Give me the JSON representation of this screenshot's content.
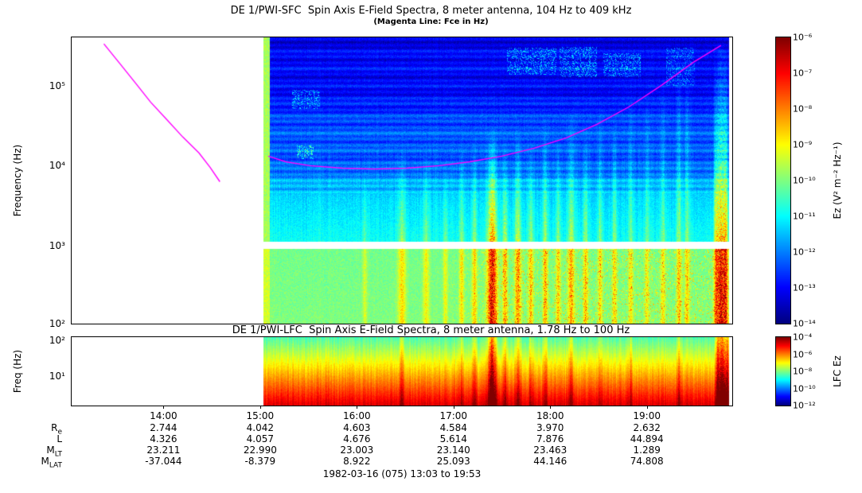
{
  "footer_label": "1982-03-16 (075) 13:03 to 19:53",
  "chart_data": [
    {
      "id": "sfc",
      "type": "heatmap",
      "title": "DE 1/PWI-SFC  Spin Axis E-Field Spectra, 8 meter antenna, 104 Hz to 409 kHz",
      "subtitle": "(Magenta Line: Fce in Hz)",
      "ylabel": "Frequency (Hz)",
      "colorbar_label": "Ez (V² m⁻² Hz⁻¹)",
      "x_start": "13:03",
      "x_end": "19:53",
      "x_ticks": [
        "14:00",
        "15:00",
        "16:00",
        "17:00",
        "18:00",
        "19:00"
      ],
      "data_start": "15:02",
      "data_end": "19:51",
      "turn_on_strip_end": "15:06",
      "freq_range_hz": [
        104,
        409000
      ],
      "freq_scale": "log",
      "ytick_exponents": [
        5,
        4,
        3,
        2
      ],
      "value_range": [
        1e-14,
        1e-06
      ],
      "colorbar_ticks": [
        -6,
        -7,
        -8,
        -9,
        -10,
        -11,
        -12,
        -13,
        -14
      ],
      "receiver_gap_hz": [
        910,
        1100
      ],
      "background_levels": [
        {
          "f_hz": 104,
          "log10_value": -10.0
        },
        {
          "f_hz": 900,
          "log10_value": -10.1
        },
        {
          "f_hz": 1100,
          "log10_value": -10.9
        },
        {
          "f_hz": 4000,
          "log10_value": -11.3
        },
        {
          "f_hz": 10000,
          "log10_value": -12.1
        },
        {
          "f_hz": 100000,
          "log10_value": -12.9
        },
        {
          "f_hz": 409000,
          "log10_value": -13.3
        }
      ],
      "bursts": [
        {
          "t": "16:05",
          "w_min": 1.5,
          "f_top_hz": 9000,
          "s": 0.6
        },
        {
          "t": "16:28",
          "w_min": 2.5,
          "f_top_hz": 16000,
          "s": 1.1
        },
        {
          "t": "16:43",
          "w_min": 2,
          "f_top_hz": 14000,
          "s": 0.9
        },
        {
          "t": "16:55",
          "w_min": 1.5,
          "f_top_hz": 10000,
          "s": 0.8
        },
        {
          "t": "17:05",
          "w_min": 1.5,
          "f_top_hz": 20000,
          "s": 1.0
        },
        {
          "t": "17:13",
          "w_min": 1.5,
          "f_top_hz": 25000,
          "s": 1.2
        },
        {
          "t": "17:24",
          "w_min": 3,
          "f_top_hz": 30000,
          "s": 2.6
        },
        {
          "t": "17:32",
          "w_min": 1.5,
          "f_top_hz": 25000,
          "s": 1.3
        },
        {
          "t": "17:40",
          "w_min": 2,
          "f_top_hz": 30000,
          "s": 1.5
        },
        {
          "t": "17:48",
          "w_min": 1.5,
          "f_top_hz": 20000,
          "s": 1.2
        },
        {
          "t": "17:57",
          "w_min": 1.5,
          "f_top_hz": 40000,
          "s": 1.3
        },
        {
          "t": "18:05",
          "w_min": 1.5,
          "f_top_hz": 25000,
          "s": 1.1
        },
        {
          "t": "18:13",
          "w_min": 2,
          "f_top_hz": 50000,
          "s": 1.4
        },
        {
          "t": "18:22",
          "w_min": 1.5,
          "f_top_hz": 30000,
          "s": 1.2
        },
        {
          "t": "18:31",
          "w_min": 1.5,
          "f_top_hz": 60000,
          "s": 1.0
        },
        {
          "t": "18:40",
          "w_min": 1.5,
          "f_top_hz": 40000,
          "s": 1.0
        },
        {
          "t": "18:50",
          "w_min": 1.5,
          "f_top_hz": 80000,
          "s": 0.9
        },
        {
          "t": "19:00",
          "w_min": 1.5,
          "f_top_hz": 100000,
          "s": 0.8
        },
        {
          "t": "19:10",
          "w_min": 1.5,
          "f_top_hz": 160000,
          "s": 0.9
        },
        {
          "t": "19:20",
          "w_min": 1.5,
          "f_top_hz": 300000,
          "s": 1.2
        },
        {
          "t": "19:25",
          "w_min": 1.5,
          "f_top_hz": 250000,
          "s": 1.1
        },
        {
          "t": "19:43",
          "w_min": 1.5,
          "f_top_hz": 200000,
          "s": 1.8
        },
        {
          "t": "19:46",
          "w_min": 2,
          "f_top_hz": 400000,
          "s": 2.6
        },
        {
          "t": "19:49",
          "w_min": 1.5,
          "f_top_hz": 320000,
          "s": 2.2
        }
      ],
      "patches": [
        {
          "t0": "15:20",
          "t1": "15:37",
          "f0_hz": 52000,
          "f1_hz": 90000,
          "s": 1.7
        },
        {
          "t0": "15:23",
          "t1": "15:33",
          "f0_hz": 12000,
          "f1_hz": 18000,
          "s": 2.0
        },
        {
          "t0": "17:33",
          "t1": "18:04",
          "f0_hz": 140000,
          "f1_hz": 300000,
          "s": 1.8
        },
        {
          "t0": "18:06",
          "t1": "18:29",
          "f0_hz": 130000,
          "f1_hz": 310000,
          "s": 1.9
        },
        {
          "t0": "18:33",
          "t1": "18:56",
          "f0_hz": 130000,
          "f1_hz": 260000,
          "s": 1.7
        },
        {
          "t0": "19:12",
          "t1": "19:30",
          "f0_hz": 100000,
          "f1_hz": 300000,
          "s": 1.3
        }
      ],
      "fce_line": {
        "color": "#ff00ff",
        "segments": [
          [
            [
              "13:23",
              339000
            ],
            [
              "13:33",
              191000
            ],
            [
              "13:43",
              107000
            ],
            [
              "13:52",
              63000
            ],
            [
              "14:02",
              38000
            ],
            [
              "14:12",
              22900
            ],
            [
              "14:22",
              14500
            ],
            [
              "14:29",
              9500
            ],
            [
              "14:35",
              6300
            ]
          ],
          [
            [
              "15:05",
              13200
            ],
            [
              "15:16",
              11200
            ],
            [
              "15:31",
              10000
            ],
            [
              "15:51",
              9300
            ],
            [
              "16:11",
              9100
            ],
            [
              "16:31",
              9300
            ],
            [
              "16:51",
              10000
            ],
            [
              "17:10",
              11200
            ],
            [
              "17:30",
              13200
            ],
            [
              "17:50",
              16600
            ],
            [
              "18:10",
              22400
            ],
            [
              "18:29",
              33000
            ],
            [
              "18:49",
              55000
            ],
            [
              "19:09",
              102000
            ],
            [
              "19:29",
              200000
            ],
            [
              "19:46",
              324000
            ]
          ]
        ]
      }
    },
    {
      "id": "lfc",
      "type": "heatmap",
      "title": "DE 1/PWI-LFC  Spin Axis E-Field Spectra, 8 meter antenna, 1.78 Hz to 100 Hz",
      "ylabel": "Freq (Hz)",
      "colorbar_label": "LFC Ez",
      "x_start": "13:03",
      "x_end": "19:53",
      "data_start": "15:02",
      "data_end": "19:51",
      "freq_range_hz": [
        1.78,
        100
      ],
      "freq_scale": "log",
      "ytick_exponents": [
        2,
        1
      ],
      "value_range": [
        1e-12,
        0.0001
      ],
      "colorbar_ticks": [
        -4,
        -6,
        -8,
        -10,
        -12
      ],
      "background_log10": {
        "top": -8.4,
        "bottom": -4.7
      },
      "bursts": [
        {
          "t": "16:28",
          "w_min": 1.5,
          "s": 0.5
        },
        {
          "t": "17:05",
          "w_min": 1.2,
          "s": 0.4
        },
        {
          "t": "17:13",
          "w_min": 1.2,
          "s": 0.5
        },
        {
          "t": "17:24",
          "w_min": 2.5,
          "s": 1.7
        },
        {
          "t": "17:32",
          "w_min": 1.2,
          "s": 0.6
        },
        {
          "t": "17:40",
          "w_min": 1.5,
          "s": 0.7
        },
        {
          "t": "17:48",
          "w_min": 1.2,
          "s": 0.5
        },
        {
          "t": "17:57",
          "w_min": 1.2,
          "s": 0.5
        },
        {
          "t": "18:13",
          "w_min": 1.5,
          "s": 0.6
        },
        {
          "t": "18:31",
          "w_min": 1.2,
          "s": 0.4
        },
        {
          "t": "18:50",
          "w_min": 1.2,
          "s": 0.4
        },
        {
          "t": "19:20",
          "w_min": 1.2,
          "s": 0.6
        },
        {
          "t": "19:44",
          "w_min": 1.5,
          "s": 1.2
        },
        {
          "t": "19:47",
          "w_min": 2,
          "s": 1.6
        },
        {
          "t": "19:50",
          "w_min": 1.2,
          "s": 1.1
        }
      ]
    },
    {
      "id": "ephemeris",
      "type": "table",
      "columns": [
        "14:00",
        "15:00",
        "16:00",
        "17:00",
        "18:00",
        "19:00"
      ],
      "rows": [
        {
          "label": "R",
          "sub": "e",
          "values": [
            "2.744",
            "4.042",
            "4.603",
            "4.584",
            "3.970",
            "2.632"
          ]
        },
        {
          "label": "L",
          "sub": "",
          "values": [
            "4.326",
            "4.057",
            "4.676",
            "5.614",
            "7.876",
            "44.894"
          ]
        },
        {
          "label": "M",
          "sub": "LT",
          "values": [
            "23.211",
            "22.990",
            "23.003",
            "23.140",
            "23.463",
            "1.289"
          ]
        },
        {
          "label": "M",
          "sub": "LAT",
          "values": [
            "-37.044",
            "-8.379",
            "8.922",
            "25.093",
            "44.146",
            "74.808"
          ]
        }
      ]
    }
  ]
}
